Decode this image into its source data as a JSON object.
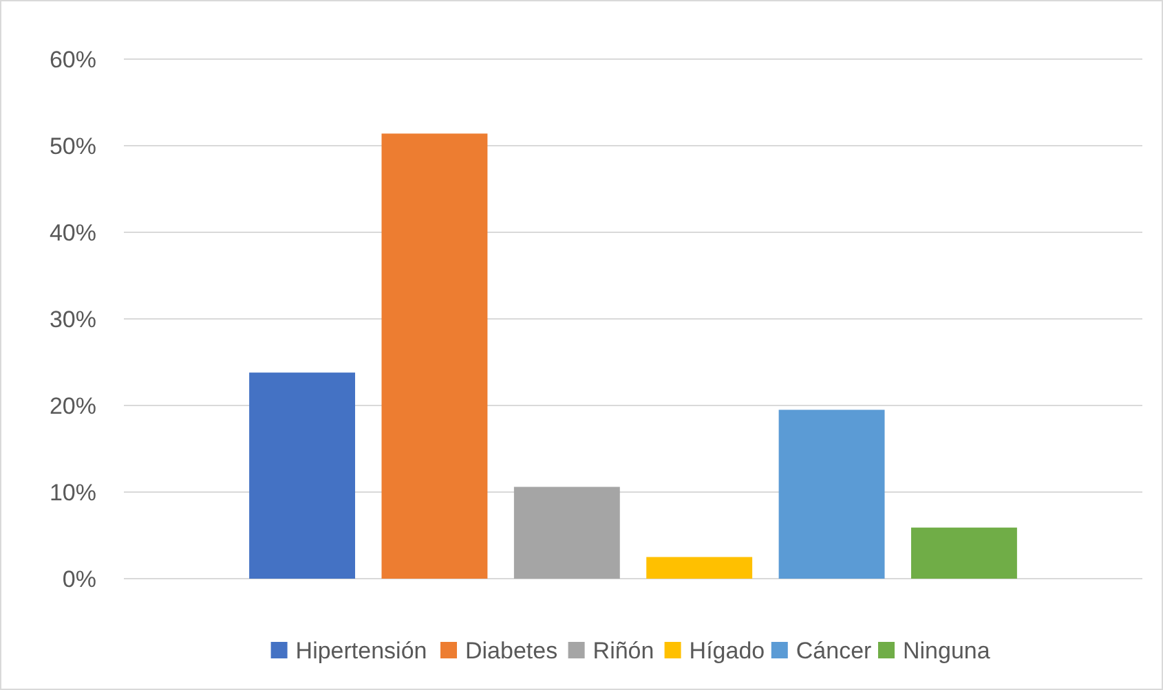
{
  "chart_data": {
    "type": "bar",
    "categories": [
      null
    ],
    "series": [
      {
        "name": "Hipertensión",
        "color": "#4472c4",
        "values": [
          23.8
        ]
      },
      {
        "name": "Diabetes",
        "color": "#ed7d31",
        "values": [
          51.4
        ]
      },
      {
        "name": "Riñón",
        "color": "#a5a5a5",
        "values": [
          10.6
        ]
      },
      {
        "name": "Hígado",
        "color": "#ffc000",
        "values": [
          2.5
        ]
      },
      {
        "name": "Cáncer",
        "color": "#5b9bd5",
        "values": [
          19.5
        ]
      },
      {
        "name": "Ninguna",
        "color": "#70ad47",
        "values": [
          5.9
        ]
      }
    ],
    "ylim": [
      0,
      60
    ],
    "yticks": [
      {
        "value": 0,
        "label": "0%"
      },
      {
        "value": 10,
        "label": "10%"
      },
      {
        "value": 20,
        "label": "20%"
      },
      {
        "value": 30,
        "label": "30%"
      },
      {
        "value": 40,
        "label": "40%"
      },
      {
        "value": 50,
        "label": "50%"
      },
      {
        "value": 60,
        "label": "60%"
      }
    ],
    "grid": "y",
    "legend": "bottom"
  }
}
